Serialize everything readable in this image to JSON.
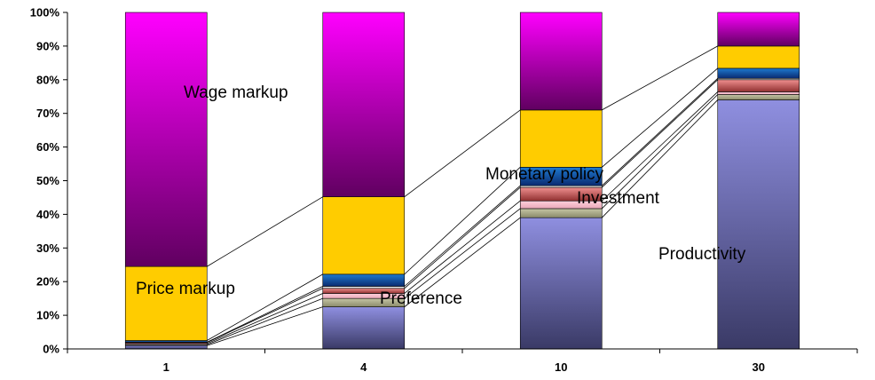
{
  "chart_data": {
    "type": "bar",
    "stacked": "percent",
    "categories": [
      "1",
      "4",
      "10",
      "30"
    ],
    "ylim": [
      0,
      100
    ],
    "y_ticks": [
      "0%",
      "10%",
      "20%",
      "30%",
      "40%",
      "50%",
      "60%",
      "70%",
      "80%",
      "90%",
      "100%"
    ],
    "grid": false,
    "series_connectors": true,
    "series": [
      {
        "key": "productivity",
        "color": "#8f8fe0",
        "color_dark": "#3a3a66",
        "values": [
          1.0,
          12.5,
          39.0,
          74.0
        ]
      },
      {
        "key": "s2",
        "color": "#c6c6a6",
        "color_dark": "#8a8a6a",
        "values": [
          0.3,
          2.5,
          2.7,
          1.6
        ]
      },
      {
        "key": "s3",
        "color": "#ffd0dc",
        "color_dark": "#e8a8b8",
        "values": [
          0.3,
          1.5,
          2.3,
          0.8
        ]
      },
      {
        "key": "investment",
        "color": "#f09090",
        "color_dark": "#903030",
        "values": [
          0.3,
          1.5,
          4.0,
          3.6
        ]
      },
      {
        "key": "s5",
        "color": "#ffffff",
        "color_dark": "#dddddd",
        "values": [
          0.1,
          0.6,
          0.5,
          0.4
        ]
      },
      {
        "key": "monetary_policy",
        "color": "#1e7ad0",
        "color_dark": "#0a2a70",
        "values": [
          0.5,
          3.6,
          5.5,
          3.0
        ]
      },
      {
        "key": "price_markup",
        "color": "#ffcc00",
        "color_dark": "#ffcc00",
        "values": [
          22.0,
          23.0,
          17.0,
          6.6
        ]
      },
      {
        "key": "wage_markup",
        "color": "#ff00ff",
        "color_dark": "#600060",
        "values": [
          75.5,
          54.8,
          29.0,
          10.0
        ]
      }
    ],
    "annotations": {
      "wage": "Wage markup",
      "price": "Price markup",
      "preference": "Preference",
      "monetary": "Monetary policy",
      "investment": "Investment",
      "productivity": "Productivity"
    }
  }
}
